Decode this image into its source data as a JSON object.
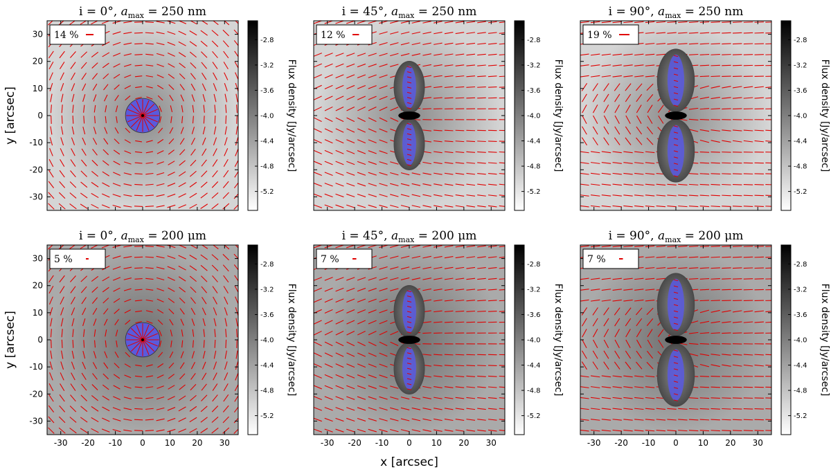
{
  "figure": {
    "xlabel": "x [arcsec]",
    "ylabel": "y [arcsec]",
    "colorbar_label": "Flux density [Jy/arcsec]",
    "colorbar_ticks": [
      "-2.8",
      "-3.2",
      "-3.6",
      "-4.0",
      "-4.4",
      "-4.8",
      "-5.2"
    ],
    "colors": {
      "vector": "#e00000",
      "lobe": "#5a5adc",
      "frame": "#000000"
    }
  },
  "chart_data": [
    {
      "type": "heatmap",
      "title_i": "i = 0°, ",
      "title_a": "a",
      "title_sub": "max",
      "title_val": " = 250 nm",
      "inclination_deg": 0,
      "grain_size_max": "250 nm",
      "legend_label": "14 %",
      "polarization_percent": 14,
      "xlim": [
        -35,
        35
      ],
      "ylim": [
        -35,
        35
      ],
      "xticks": [
        -30,
        -20,
        -10,
        0,
        10,
        20,
        30
      ],
      "yticks": [
        -30,
        -20,
        -10,
        0,
        10,
        20,
        30
      ],
      "colorbar_range": [
        -5.5,
        -2.5
      ],
      "background_log_flux": -5.0
    },
    {
      "type": "heatmap",
      "title_i": "i = 45°, ",
      "title_a": "a",
      "title_sub": "max",
      "title_val": " = 250 nm",
      "inclination_deg": 45,
      "grain_size_max": "250 nm",
      "legend_label": "12 %",
      "polarization_percent": 12,
      "xlim": [
        -35,
        35
      ],
      "ylim": [
        -35,
        35
      ],
      "xticks": [
        -30,
        -20,
        -10,
        0,
        10,
        20,
        30
      ],
      "yticks": [
        -30,
        -20,
        -10,
        0,
        10,
        20,
        30
      ],
      "colorbar_range": [
        -5.5,
        -2.5
      ],
      "background_log_flux": -5.0
    },
    {
      "type": "heatmap",
      "title_i": "i = 90°, ",
      "title_a": "a",
      "title_sub": "max",
      "title_val": " = 250 nm",
      "inclination_deg": 90,
      "grain_size_max": "250 nm",
      "legend_label": "19 %",
      "polarization_percent": 19,
      "xlim": [
        -35,
        35
      ],
      "ylim": [
        -35,
        35
      ],
      "xticks": [
        -30,
        -20,
        -10,
        0,
        10,
        20,
        30
      ],
      "yticks": [
        -30,
        -20,
        -10,
        0,
        10,
        20,
        30
      ],
      "colorbar_range": [
        -5.5,
        -2.5
      ],
      "background_log_flux": -5.0
    },
    {
      "type": "heatmap",
      "title_i": "i = 0°, ",
      "title_a": "a",
      "title_sub": "max",
      "title_val": " = 200 μm",
      "inclination_deg": 0,
      "grain_size_max": "200 μm",
      "legend_label": "5 %",
      "polarization_percent": 5,
      "xlim": [
        -35,
        35
      ],
      "ylim": [
        -35,
        35
      ],
      "xticks": [
        -30,
        -20,
        -10,
        0,
        10,
        20,
        30
      ],
      "yticks": [
        -30,
        -20,
        -10,
        0,
        10,
        20,
        30
      ],
      "colorbar_range": [
        -5.5,
        -2.5
      ],
      "background_log_flux": -4.5
    },
    {
      "type": "heatmap",
      "title_i": "i = 45°, ",
      "title_a": "a",
      "title_sub": "max",
      "title_val": " = 200 μm",
      "inclination_deg": 45,
      "grain_size_max": "200 μm",
      "legend_label": "7 %",
      "polarization_percent": 7,
      "xlim": [
        -35,
        35
      ],
      "ylim": [
        -35,
        35
      ],
      "xticks": [
        -30,
        -20,
        -10,
        0,
        10,
        20,
        30
      ],
      "yticks": [
        -30,
        -20,
        -10,
        0,
        10,
        20,
        30
      ],
      "colorbar_range": [
        -5.5,
        -2.5
      ],
      "background_log_flux": -4.5
    },
    {
      "type": "heatmap",
      "title_i": "i = 90°, ",
      "title_a": "a",
      "title_sub": "max",
      "title_val": " = 200 μm",
      "inclination_deg": 90,
      "grain_size_max": "200 μm",
      "legend_label": "7 %",
      "polarization_percent": 7,
      "xlim": [
        -35,
        35
      ],
      "ylim": [
        -35,
        35
      ],
      "xticks": [
        -30,
        -20,
        -10,
        0,
        10,
        20,
        30
      ],
      "yticks": [
        -30,
        -20,
        -10,
        0,
        10,
        20,
        30
      ],
      "colorbar_range": [
        -5.5,
        -2.5
      ],
      "background_log_flux": -4.5
    }
  ]
}
